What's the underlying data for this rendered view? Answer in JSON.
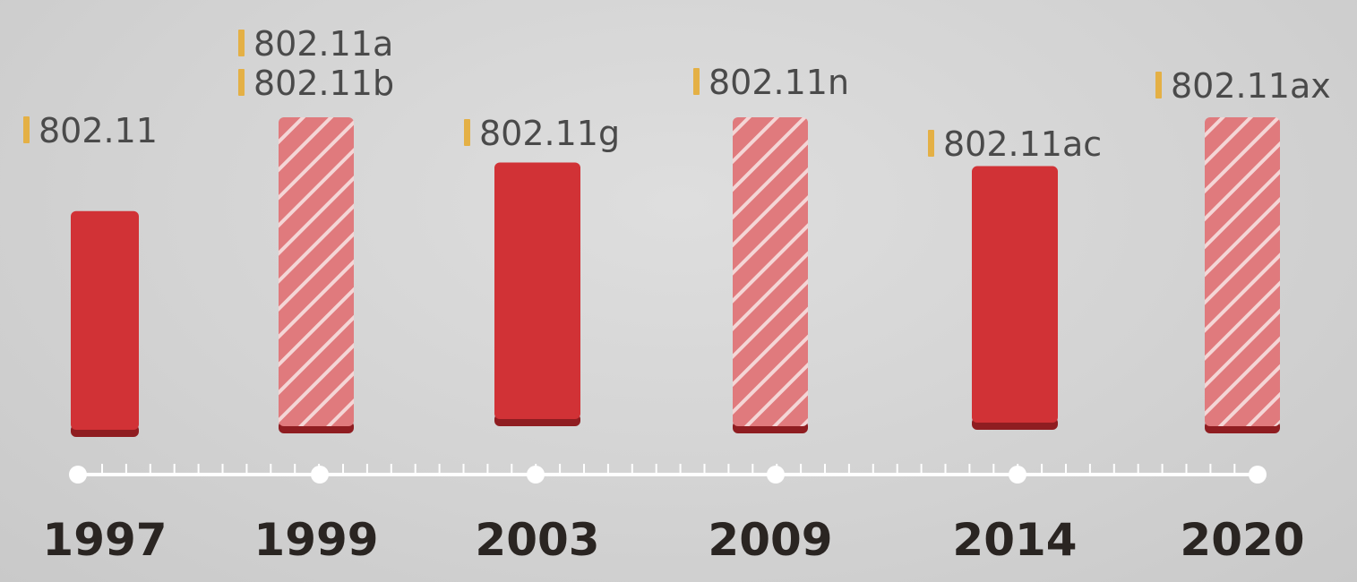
{
  "chart_data": {
    "type": "bar",
    "title": "",
    "xlabel": "",
    "ylabel": "",
    "grid": false,
    "legend": "none",
    "colors": {
      "bar_solid": "#d13236",
      "bar_solid_base": "#8f1d21",
      "bar_striped": "#e07a7d",
      "stripe": "#f4d6d6",
      "marker": "#e4b045",
      "label_text": "#4a4a4a",
      "year_text": "#2a2522",
      "axis": "#ffffff"
    },
    "categories": [
      "1997",
      "1999",
      "2003",
      "2009",
      "2014",
      "2020"
    ],
    "standards": [
      [
        "802.11"
      ],
      [
        "802.11a",
        "802.11b"
      ],
      [
        "802.11g"
      ],
      [
        "802.11n"
      ],
      [
        "802.11ac"
      ],
      [
        "802.11ax"
      ]
    ],
    "bar_styles": [
      "solid",
      "striped",
      "solid",
      "striped",
      "solid",
      "striped"
    ],
    "values": [
      70,
      100,
      85,
      100,
      84,
      100
    ],
    "ylim": [
      0,
      100
    ],
    "axis_range": [
      1997,
      2020
    ]
  }
}
